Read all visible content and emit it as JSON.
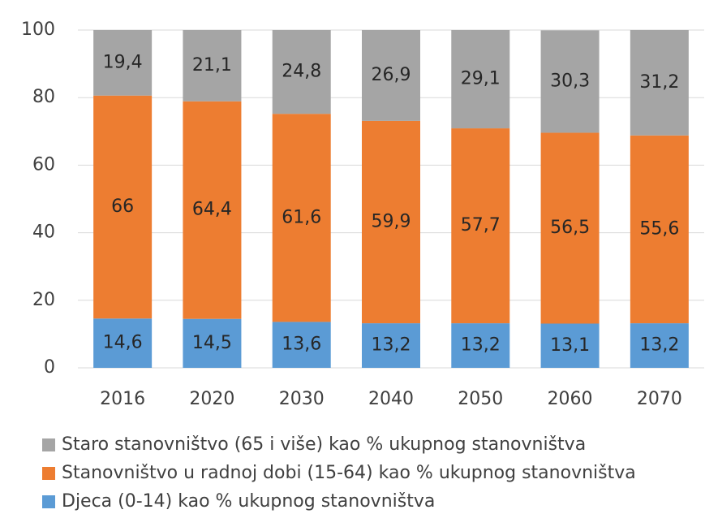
{
  "chart_data": {
    "type": "stacked_bar",
    "categories": [
      "2016",
      "2020",
      "2030",
      "2040",
      "2050",
      "2060",
      "2070"
    ],
    "series": [
      {
        "name": "Djeca (0-14) kao % ukupnog stanovništva",
        "color": "#5b9bd5",
        "values": [
          14.6,
          14.5,
          13.6,
          13.2,
          13.2,
          13.1,
          13.2
        ],
        "value_labels": [
          "14,6",
          "14,5",
          "13,6",
          "13,2",
          "13,2",
          "13,1",
          "13,2"
        ]
      },
      {
        "name": "Stanovništvo u radnoj dobi (15-64) kao % ukupnog stanovništva",
        "color": "#ed7d31",
        "values": [
          66,
          64.4,
          61.6,
          59.9,
          57.7,
          56.5,
          55.6
        ],
        "value_labels": [
          "66",
          "64,4",
          "61,6",
          "59,9",
          "57,7",
          "56,5",
          "55,6"
        ]
      },
      {
        "name": "Staro stanovništvo (65 i više) kao % ukupnog stanovništva",
        "color": "#a5a5a5",
        "values": [
          19.4,
          21.1,
          24.8,
          26.9,
          29.1,
          30.3,
          31.2
        ],
        "value_labels": [
          "19,4",
          "21,1",
          "24,8",
          "26,9",
          "29,1",
          "30,3",
          "31,2"
        ]
      }
    ],
    "ylim": [
      0,
      100
    ],
    "yticks": [
      0,
      20,
      40,
      60,
      80,
      100
    ],
    "grid": true,
    "legend": "bottom"
  }
}
